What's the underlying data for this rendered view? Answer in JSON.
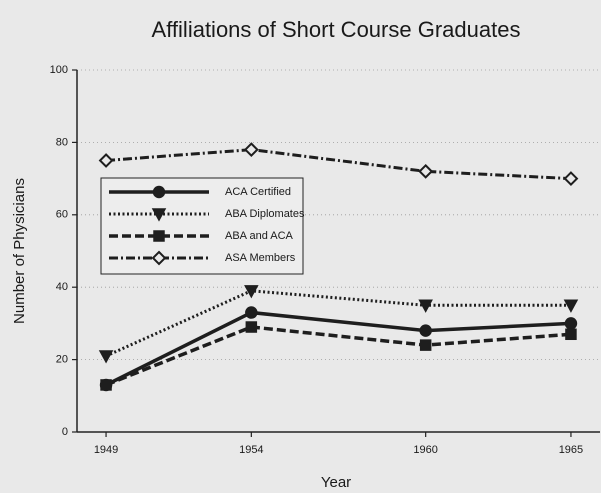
{
  "chart_data": {
    "type": "line",
    "title": "Affiliations of Short Course Graduates",
    "x_label": "Year",
    "y_label": "Number of Physicians",
    "x": [
      1949,
      1954,
      1960,
      1965
    ],
    "xlim": [
      1948,
      1966
    ],
    "xticks": [
      1949,
      1954,
      1960,
      1965
    ],
    "ylim": [
      0,
      100
    ],
    "yticks": [
      0,
      20,
      40,
      60,
      80,
      100
    ],
    "grid": true,
    "legend": "center left",
    "series": [
      {
        "name": "ACA Certified",
        "color": "#1e1e1e",
        "marker": "circle",
        "linestyle": "solid",
        "values": [
          13,
          33,
          28,
          30
        ]
      },
      {
        "name": "ABA Diplomates",
        "color": "#1e1e1e",
        "marker": "triangle-down",
        "linestyle": "dotted",
        "values": [
          21,
          39,
          35,
          35
        ]
      },
      {
        "name": "ABA and ACA",
        "color": "#1e1e1e",
        "marker": "square",
        "linestyle": "dashed",
        "values": [
          13,
          29,
          24,
          27
        ]
      },
      {
        "name": "ASA Members",
        "color": "#1e1e1e",
        "marker": "diamond",
        "linestyle": "dashdot",
        "values": [
          75,
          78,
          72,
          70
        ]
      }
    ]
  }
}
